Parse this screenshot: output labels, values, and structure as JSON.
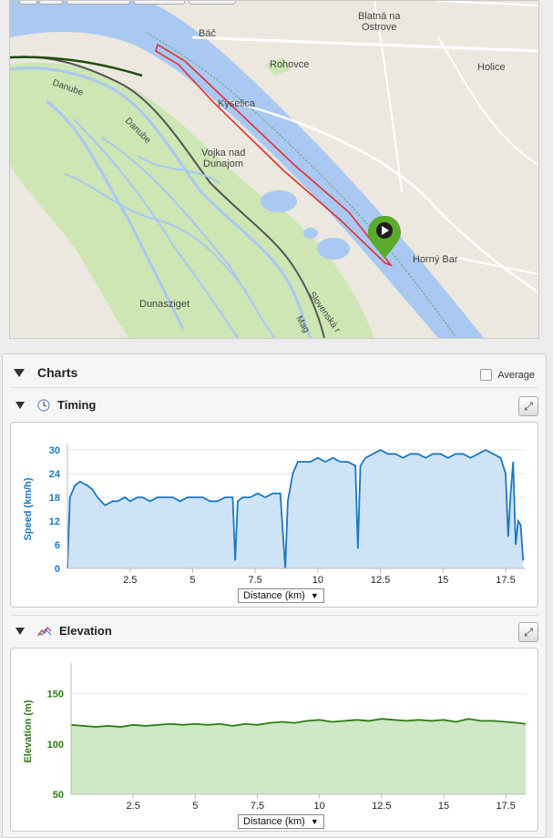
{
  "map": {
    "places": [
      {
        "name": "Bač",
        "x": "Báč"
      },
      {
        "name": "Blatná na Ostrove"
      },
      {
        "name": "Rohovce"
      },
      {
        "name": "Holice"
      },
      {
        "name": "Kyselica"
      },
      {
        "name": "Vojka nad Dunajom"
      },
      {
        "name": "Horný Bar"
      },
      {
        "name": "Dunasziget"
      }
    ],
    "labels": {
      "bac": "Báč",
      "blatna_1": "Blatná na",
      "blatna_2": "Ostrove",
      "rohovce": "Rohovce",
      "holice": "Holice",
      "kyselica": "Kyselica",
      "vojka_1": "Vojka nad",
      "vojka_2": "Dunajom",
      "horny_bar": "Horný Bar",
      "dunasziget": "Dunasziget",
      "danube_1": "Danube",
      "danube_2": "Danube",
      "slovenska": "Slovenská r",
      "mag": "Mag"
    },
    "colors": {
      "water": "#a9c8f2",
      "land": "#ece8df",
      "green": "#cde6b4",
      "route": "#e03030",
      "marker": "#5aab2a"
    }
  },
  "charts_panel": {
    "title": "Charts",
    "average_label": "Average"
  },
  "timing": {
    "title": "Timing",
    "icon": "clock-icon",
    "selector_label": "Distance (km)"
  },
  "elevation": {
    "title": "Elevation",
    "icon": "elevation-icon",
    "selector_label": "Distance (km)"
  },
  "chart_data": [
    {
      "type": "area",
      "ylabel": "Speed (km/h)",
      "xlabel": "Distance (km)",
      "xlim": [
        0,
        18.3
      ],
      "ylim": [
        0,
        30
      ],
      "yticks": [
        0,
        6,
        12,
        18,
        24,
        30
      ],
      "xticks": [
        2.5,
        5,
        7.5,
        10,
        12.5,
        15,
        17.5
      ],
      "color": "#1a78c2",
      "fill": "#cfe3f7",
      "x": [
        0,
        0.1,
        0.3,
        0.5,
        0.8,
        1.0,
        1.2,
        1.5,
        1.8,
        2.0,
        2.3,
        2.5,
        2.8,
        3.0,
        3.3,
        3.6,
        3.9,
        4.2,
        4.5,
        4.8,
        5.1,
        5.4,
        5.7,
        6.0,
        6.3,
        6.6,
        6.7,
        6.8,
        7.0,
        7.3,
        7.6,
        7.9,
        8.2,
        8.5,
        8.7,
        8.8,
        9.0,
        9.2,
        9.4,
        9.7,
        10.0,
        10.3,
        10.6,
        10.9,
        11.2,
        11.5,
        11.6,
        11.7,
        11.9,
        12.2,
        12.5,
        12.8,
        13.1,
        13.4,
        13.7,
        14.0,
        14.3,
        14.6,
        14.9,
        15.2,
        15.5,
        15.8,
        16.1,
        16.4,
        16.7,
        17.0,
        17.3,
        17.5,
        17.6,
        17.7,
        17.8,
        17.9,
        18.0,
        18.1,
        18.2
      ],
      "y": [
        0,
        18,
        21,
        22,
        21,
        20,
        18,
        16,
        17,
        17,
        18,
        17,
        18,
        18,
        17,
        18,
        18,
        18,
        17,
        18,
        18,
        18,
        17,
        17,
        18,
        18,
        2,
        17,
        18,
        18,
        19,
        18,
        19,
        19,
        0,
        17,
        24,
        27,
        27,
        27,
        28,
        27,
        28,
        27,
        27,
        26,
        5,
        26,
        28,
        29,
        30,
        29,
        29,
        28,
        29,
        29,
        28,
        29,
        29,
        28,
        29,
        29,
        28,
        29,
        30,
        29,
        28,
        24,
        8,
        19,
        27,
        6,
        12,
        11,
        2
      ]
    },
    {
      "type": "area",
      "ylabel": "Elevation (m)",
      "xlabel": "Distance (km)",
      "xlim": [
        0,
        18.3
      ],
      "ylim": [
        50,
        175
      ],
      "yticks": [
        50,
        100,
        150
      ],
      "xticks": [
        2.5,
        5,
        7.5,
        10,
        12.5,
        15,
        17.5
      ],
      "color": "#2e7d17",
      "fill": "#cfe8c5",
      "x": [
        0,
        0.5,
        1.0,
        1.5,
        2.0,
        2.5,
        3.0,
        3.5,
        4.0,
        4.5,
        5.0,
        5.5,
        6.0,
        6.5,
        7.0,
        7.5,
        8.0,
        8.5,
        9.0,
        9.5,
        10.0,
        10.5,
        11.0,
        11.5,
        12.0,
        12.5,
        13.0,
        13.5,
        14.0,
        14.5,
        15.0,
        15.5,
        16.0,
        16.5,
        17.0,
        17.5,
        18.0,
        18.3
      ],
      "y": [
        119,
        118,
        117,
        118,
        117,
        119,
        118,
        119,
        120,
        119,
        120,
        119,
        120,
        118,
        120,
        119,
        121,
        122,
        121,
        123,
        124,
        122,
        123,
        124,
        123,
        125,
        124,
        123,
        124,
        123,
        124,
        122,
        125,
        123,
        123,
        122,
        121,
        120
      ]
    }
  ]
}
